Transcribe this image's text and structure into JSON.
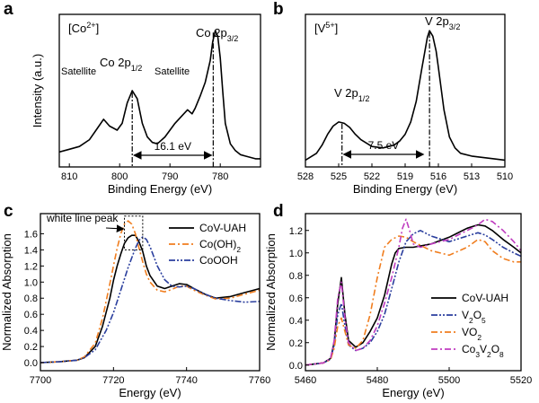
{
  "colors": {
    "black": "#000000",
    "orange": "#f07d1e",
    "blue": "#2b3f9e",
    "magenta": "#c03cc0"
  },
  "chart_data": [
    {
      "panel": "a",
      "type": "line",
      "inset_label": "[Co2+]",
      "xlabel": "Binding Energy (eV)",
      "ylabel": "Intensity (a.u.)",
      "xlim": [
        812,
        772
      ],
      "x_reversed": true,
      "x_ticks": [
        810,
        800,
        790,
        780
      ],
      "y_ticks_shown": false,
      "series": [
        {
          "color": "#000000",
          "dash": "solid",
          "x": [
            812,
            810,
            808,
            806,
            804.5,
            803.2,
            802,
            800.5,
            799.5,
            798.5,
            797.5,
            796.5,
            795.5,
            794.5,
            793.5,
            792.5,
            791,
            789,
            787.5,
            786.5,
            785.6,
            785,
            784,
            783,
            782,
            781.5,
            781,
            780.5,
            780,
            779.5,
            779,
            778,
            777,
            776,
            775,
            774,
            773,
            772
          ],
          "y": [
            11,
            13,
            15,
            20,
            28,
            35,
            30,
            27,
            32,
            47,
            56,
            50,
            32,
            22,
            18,
            17,
            22,
            32,
            38,
            42,
            39,
            43,
            52,
            62,
            78,
            92,
            100,
            96,
            80,
            55,
            32,
            17,
            12,
            9,
            8,
            7,
            6,
            6
          ]
        }
      ],
      "annotations": [
        {
          "text": "Satellite",
          "x": 803.2
        },
        {
          "text": "Co 2p1/2",
          "x": 797.5
        },
        {
          "text": "Satellite",
          "x": 785.6
        },
        {
          "text": "Co 2p3/2",
          "x": 781
        },
        {
          "text": "16.1 eV",
          "from": 797.5,
          "to": 781.4
        }
      ]
    },
    {
      "panel": "b",
      "type": "line",
      "inset_label": "[V5+]",
      "xlabel": "Binding Energy (eV)",
      "xlim": [
        528,
        510
      ],
      "x_reversed": true,
      "x_ticks": [
        528,
        525,
        522,
        519,
        516,
        513,
        510
      ],
      "y_ticks_shown": false,
      "series": [
        {
          "color": "#000000",
          "dash": "solid",
          "x": [
            528,
            527,
            526.5,
            526,
            525.5,
            525,
            524.5,
            524,
            523.5,
            523,
            522,
            521,
            520,
            519.5,
            519,
            518.5,
            518,
            517.5,
            517,
            516.8,
            516.5,
            516.2,
            516,
            515.5,
            515,
            514.5,
            514,
            513,
            512,
            511,
            510
          ],
          "y": [
            5,
            10,
            16,
            24,
            30,
            33,
            32,
            29,
            24,
            20,
            15,
            14,
            16,
            19,
            24,
            33,
            48,
            72,
            95,
            100,
            96,
            85,
            73,
            42,
            22,
            14,
            10,
            8,
            7,
            6,
            5
          ]
        }
      ],
      "annotations": [
        {
          "text": "V 2p1/2",
          "x": 524.7
        },
        {
          "text": "V 2p3/2",
          "x": 516.8
        },
        {
          "text": "7.5 eV",
          "from": 524.7,
          "to": 517.2
        }
      ]
    },
    {
      "panel": "c",
      "type": "line",
      "xlabel": "Energy (eV)",
      "ylabel": "Normalized Absorption",
      "xlim": [
        7700,
        7760
      ],
      "ylim": [
        -0.1,
        1.85
      ],
      "x_ticks": [
        7700,
        7720,
        7740,
        7760
      ],
      "y_ticks": [
        0.0,
        0.2,
        0.4,
        0.6,
        0.8,
        1.0,
        1.2,
        1.4,
        1.6
      ],
      "y_tick_labels": [
        "0.0",
        "0.2",
        "0.4",
        "0.6",
        "0.8",
        "1.0",
        "1.2",
        "1.4",
        "1.6"
      ],
      "legend_position": "top-right",
      "box_annotation": {
        "text": "white line peak",
        "x_range": [
          7723,
          7728
        ],
        "y_range": [
          1.4,
          1.82
        ]
      },
      "series": [
        {
          "name": "CoV-UAH",
          "color": "#000000",
          "dash": "solid",
          "x": [
            7700,
            7705,
            7710,
            7712,
            7715,
            7717,
            7719,
            7720,
            7721,
            7722,
            7723,
            7724,
            7725,
            7726,
            7727,
            7728,
            7729,
            7730,
            7732,
            7734,
            7736,
            7738,
            7740,
            7742,
            7745,
            7748,
            7752,
            7756,
            7760
          ],
          "y": [
            0.0,
            0.01,
            0.03,
            0.06,
            0.2,
            0.45,
            0.8,
            1.02,
            1.2,
            1.35,
            1.48,
            1.55,
            1.58,
            1.58,
            1.5,
            1.38,
            1.2,
            1.08,
            0.95,
            0.92,
            0.95,
            0.98,
            0.97,
            0.92,
            0.85,
            0.8,
            0.82,
            0.87,
            0.92
          ]
        },
        {
          "name": "Co(OH)2",
          "color": "#f07d1e",
          "dash": "dashdot",
          "x": [
            7700,
            7705,
            7710,
            7712,
            7715,
            7717,
            7719,
            7720,
            7721,
            7722,
            7723,
            7724,
            7725,
            7726,
            7727,
            7728,
            7729,
            7730,
            7732,
            7734,
            7736,
            7738,
            7740,
            7742,
            7745,
            7748,
            7752,
            7756,
            7760
          ],
          "y": [
            0.0,
            0.01,
            0.03,
            0.07,
            0.24,
            0.55,
            0.98,
            1.2,
            1.42,
            1.6,
            1.72,
            1.76,
            1.72,
            1.6,
            1.42,
            1.25,
            1.1,
            1.0,
            0.9,
            0.88,
            0.91,
            0.95,
            0.95,
            0.9,
            0.84,
            0.79,
            0.8,
            0.85,
            0.9
          ]
        },
        {
          "name": "CoOOH",
          "color": "#2b3f9e",
          "dash": "dashdotdot",
          "x": [
            7700,
            7705,
            7710,
            7712,
            7715,
            7718,
            7720,
            7722,
            7724,
            7726,
            7727,
            7728,
            7729,
            7730,
            7731,
            7732,
            7734,
            7736,
            7738,
            7740,
            7742,
            7745,
            7748,
            7752,
            7756,
            7760
          ],
          "y": [
            0.0,
            0.01,
            0.03,
            0.06,
            0.16,
            0.4,
            0.62,
            0.9,
            1.18,
            1.42,
            1.52,
            1.56,
            1.53,
            1.44,
            1.32,
            1.2,
            1.03,
            0.95,
            0.94,
            0.95,
            0.92,
            0.85,
            0.8,
            0.77,
            0.75,
            0.76
          ]
        }
      ]
    },
    {
      "panel": "d",
      "type": "line",
      "xlabel": "Energy (eV)",
      "ylabel": "Normalized Absorption",
      "xlim": [
        5460,
        5520
      ],
      "ylim": [
        -0.05,
        1.35
      ],
      "x_ticks": [
        5460,
        5480,
        5500,
        5520
      ],
      "y_ticks": [
        0.0,
        0.2,
        0.4,
        0.6,
        0.8,
        1.0,
        1.2
      ],
      "y_tick_labels": [
        "0.0",
        "0.2",
        "0.4",
        "0.6",
        "0.8",
        "1.0",
        "1.2"
      ],
      "legend_position": "bottom-right",
      "series": [
        {
          "name": "CoV-UAH",
          "color": "#000000",
          "dash": "solid",
          "x": [
            5460,
            5465,
            5467,
            5468,
            5469,
            5470,
            5471,
            5472,
            5474,
            5476,
            5478,
            5480,
            5482,
            5484,
            5485,
            5486,
            5488,
            5490,
            5495,
            5500,
            5505,
            5508,
            5510,
            5512,
            5515,
            5518,
            5520
          ],
          "y": [
            0.0,
            0.02,
            0.06,
            0.2,
            0.55,
            0.78,
            0.45,
            0.22,
            0.16,
            0.2,
            0.3,
            0.42,
            0.62,
            0.9,
            1.0,
            1.04,
            1.05,
            1.05,
            1.08,
            1.14,
            1.22,
            1.25,
            1.24,
            1.2,
            1.12,
            1.05,
            1.0
          ]
        },
        {
          "name": "V2O5",
          "color": "#2b3f9e",
          "dash": "dashdotdot",
          "x": [
            5460,
            5465,
            5467,
            5468,
            5469,
            5470,
            5471,
            5472,
            5474,
            5476,
            5478,
            5480,
            5482,
            5484,
            5486,
            5488,
            5490,
            5492,
            5495,
            5500,
            5505,
            5508,
            5510,
            5512,
            5515,
            5518,
            5520
          ],
          "y": [
            0.0,
            0.02,
            0.05,
            0.18,
            0.45,
            0.55,
            0.35,
            0.18,
            0.13,
            0.15,
            0.2,
            0.3,
            0.45,
            0.68,
            0.92,
            1.1,
            1.17,
            1.2,
            1.15,
            1.1,
            1.15,
            1.18,
            1.16,
            1.12,
            1.05,
            1.0,
            0.97
          ]
        },
        {
          "name": "VO2",
          "color": "#f07d1e",
          "dash": "dashdot",
          "x": [
            5460,
            5465,
            5467,
            5468,
            5469,
            5470,
            5471,
            5472,
            5474,
            5476,
            5478,
            5480,
            5482,
            5484,
            5486,
            5488,
            5490,
            5495,
            5500,
            5505,
            5508,
            5510,
            5512,
            5515,
            5518,
            5520
          ],
          "y": [
            0.0,
            0.02,
            0.05,
            0.15,
            0.35,
            0.42,
            0.3,
            0.18,
            0.15,
            0.22,
            0.45,
            0.78,
            1.05,
            1.12,
            1.15,
            1.14,
            1.1,
            1.02,
            0.98,
            1.05,
            1.12,
            1.1,
            1.02,
            0.95,
            0.92,
            0.92
          ]
        },
        {
          "name": "Co3V2O8",
          "color": "#c03cc0",
          "dash": "dashdot",
          "x": [
            5460,
            5465,
            5467,
            5468,
            5469,
            5470,
            5471,
            5472,
            5474,
            5476,
            5478,
            5480,
            5482,
            5484,
            5486,
            5487,
            5488,
            5489,
            5490,
            5492,
            5495,
            5500,
            5505,
            5508,
            5510,
            5512,
            5515,
            5518,
            5520
          ],
          "y": [
            0.0,
            0.02,
            0.06,
            0.22,
            0.6,
            0.74,
            0.42,
            0.2,
            0.13,
            0.15,
            0.22,
            0.35,
            0.55,
            0.78,
            1.05,
            1.22,
            1.3,
            1.2,
            1.08,
            1.05,
            1.08,
            1.12,
            1.2,
            1.25,
            1.3,
            1.28,
            1.2,
            1.1,
            1.02
          ]
        }
      ]
    }
  ]
}
